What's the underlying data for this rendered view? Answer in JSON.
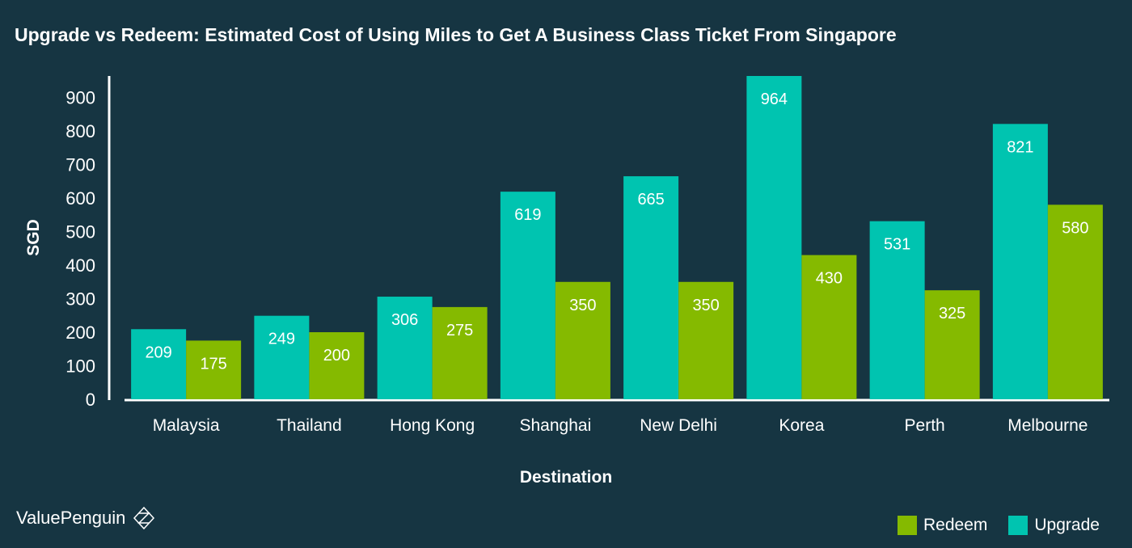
{
  "title": "Upgrade vs Redeem: Estimated Cost of Using Miles to Get A Business Class Ticket From Singapore",
  "brand": {
    "name": "ValuePenguin",
    "icon": "valuepenguin-logo-icon"
  },
  "colors": {
    "background": "#163542",
    "upgrade": "#00c4b0",
    "redeem": "#85ba00",
    "axis": "#ffffff"
  },
  "legend": [
    {
      "label": "Redeem",
      "color": "#85ba00"
    },
    {
      "label": "Upgrade",
      "color": "#00c4b0"
    }
  ],
  "chart_data": {
    "type": "bar",
    "title": "Upgrade vs Redeem: Estimated Cost of Using Miles to Get A Business Class Ticket From Singapore",
    "xlabel": "Destination",
    "ylabel": "SGD",
    "categories": [
      "Malaysia",
      "Thailand",
      "Hong Kong",
      "Shanghai",
      "New Delhi",
      "Korea",
      "Perth",
      "Melbourne"
    ],
    "series": [
      {
        "name": "Upgrade",
        "color": "#00c4b0",
        "values": [
          209,
          249,
          306,
          619,
          665,
          964,
          531,
          821
        ]
      },
      {
        "name": "Redeem",
        "color": "#85ba00",
        "values": [
          175,
          200,
          275,
          350,
          350,
          430,
          325,
          580
        ]
      }
    ],
    "ylim": [
      0,
      964
    ],
    "yticks": [
      0,
      100,
      200,
      300,
      400,
      500,
      600,
      700,
      800,
      900
    ],
    "grid": false,
    "legend_position": "bottom-right",
    "data_labels": true
  }
}
